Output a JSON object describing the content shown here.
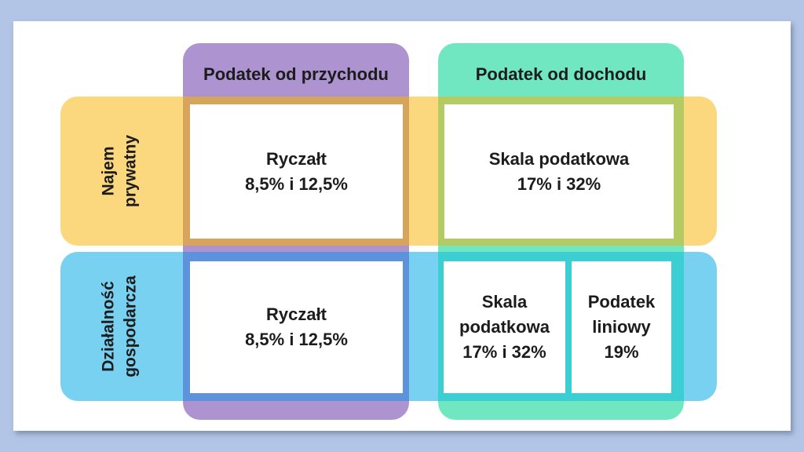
{
  "colors": {
    "page_margin": "#b2c5e7",
    "canvas": "#ffffff",
    "column_przychod": "#ad94d1",
    "column_dochod": "#71e7c1",
    "row_najem": "#fbd87e",
    "row_dzialalnosc": "#79d1f2",
    "overlap_przychod_najem": "#d7a45c",
    "overlap_dochod_najem": "#b3cb62",
    "overlap_przychod_dzialalnosc": "#5d92dc",
    "overlap_dochod_dzialalnosc": "#3bcfd3"
  },
  "columns": {
    "przychod": {
      "label": "Podatek od przychodu"
    },
    "dochod": {
      "label": "Podatek od dochodu"
    }
  },
  "rows": {
    "najem": {
      "line1": "Najem",
      "line2": "prywatny"
    },
    "dzialalnosc": {
      "line1": "Działalność",
      "line2": "gospodarcza"
    }
  },
  "cells": {
    "najem_przychod": {
      "title": "Ryczałt",
      "rates": "8,5% i 12,5%"
    },
    "najem_dochod": {
      "title": "Skala podatkowa",
      "rates": "17% i 32%"
    },
    "dzialalnosc_przychod": {
      "title": "Ryczałt",
      "rates": "8,5% i 12,5%"
    },
    "dzialalnosc_dochod_skala": {
      "title": "Skala podatkowa",
      "rates": "17% i 32%"
    },
    "dzialalnosc_dochod_liniowy": {
      "title": "Podatek liniowy",
      "rates": "19%"
    }
  }
}
